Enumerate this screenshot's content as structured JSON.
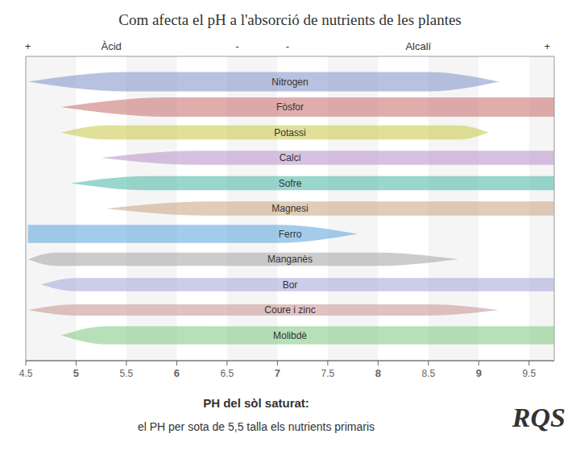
{
  "chart_data": {
    "type": "area",
    "title": "Com afecta el pH a l'absorció de nutrients de les plantes",
    "xlabel": "PH del sòl saturat:",
    "xlim": [
      4.5,
      9.75
    ],
    "xticks": [
      4.5,
      5,
      5.5,
      6,
      6.5,
      7,
      7.5,
      8,
      8.5,
      9,
      9.5
    ],
    "ylim": [
      0,
      12
    ],
    "tick_labels": "x",
    "annotations": [
      {
        "text": "+",
        "x": 4.52
      },
      {
        "text": "Àcid",
        "x": 5.35
      },
      {
        "text": "-",
        "x": 6.6
      },
      {
        "text": "-",
        "x": 7.1
      },
      {
        "text": "Alcalí",
        "x": 8.4
      },
      {
        "text": "+",
        "x": 9.68
      },
      {
        "text": "el PH per sota de 5,5 talla els nutrients primaris"
      },
      {
        "text": "RQS"
      }
    ],
    "series": [
      {
        "name": "Nitrogen",
        "color": "#8899cc",
        "left": 4.52,
        "right": 9.2,
        "peak_start": 5.5,
        "peak_end": 8.5,
        "height": 0.38
      },
      {
        "name": "Fòsfor",
        "color": "#cc7777",
        "left": 4.85,
        "right": 9.75,
        "peak_start": 5.9,
        "peak_end": 9.75,
        "height": 0.38
      },
      {
        "name": "Potassi",
        "color": "#cccc55",
        "left": 4.85,
        "right": 9.1,
        "peak_start": 5.3,
        "peak_end": 8.8,
        "height": 0.28
      },
      {
        "name": "Calci",
        "color": "#bb99cc",
        "left": 5.25,
        "right": 9.75,
        "peak_start": 6.2,
        "peak_end": 9.75,
        "height": 0.28
      },
      {
        "name": "Sofre",
        "color": "#55bbaa",
        "left": 4.95,
        "right": 9.75,
        "peak_start": 5.7,
        "peak_end": 9.75,
        "height": 0.28
      },
      {
        "name": "Magnesi",
        "color": "#ccaa88",
        "left": 5.3,
        "right": 9.75,
        "peak_start": 6.3,
        "peak_end": 9.75,
        "height": 0.28
      },
      {
        "name": "Ferro",
        "color": "#66aadd",
        "left": 4.52,
        "right": 7.8,
        "peak_start": 4.52,
        "peak_end": 7.0,
        "height": 0.36
      },
      {
        "name": "Manganès",
        "color": "#aaaaaa",
        "left": 4.52,
        "right": 8.8,
        "peak_start": 4.8,
        "peak_end": 8.0,
        "height": 0.26
      },
      {
        "name": "Bor",
        "color": "#aaaadd",
        "left": 4.65,
        "right": 9.75,
        "peak_start": 5.0,
        "peak_end": 9.75,
        "height": 0.26
      },
      {
        "name": "Coure i zinc",
        "color": "#cc9999",
        "left": 4.52,
        "right": 9.2,
        "peak_start": 5.0,
        "peak_end": 8.5,
        "height": 0.22
      },
      {
        "name": "Molibdè",
        "color": "#88cc88",
        "left": 4.85,
        "right": 9.75,
        "peak_start": 5.3,
        "peak_end": 9.75,
        "height": 0.36
      }
    ]
  }
}
